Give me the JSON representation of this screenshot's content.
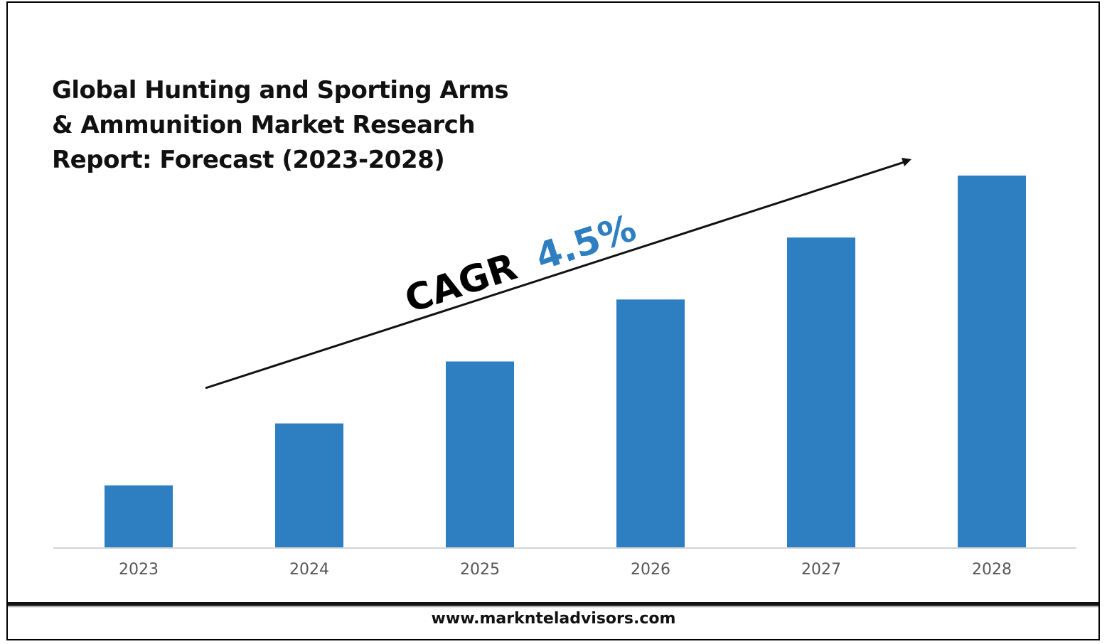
{
  "page": {
    "title": "Global Hunting and Sporting Arms\n& Ammunition Market Research\nReport: Forecast (2023-2028)",
    "footer_url": "www.marknteladvisors.com"
  },
  "annotation": {
    "cagr_label": "CAGR",
    "cagr_value": "4.5%",
    "label_color": "#000000",
    "value_color": "#2E7FC1"
  },
  "chart_data": {
    "type": "bar",
    "categories": [
      "2023",
      "2024",
      "2025",
      "2026",
      "2027",
      "2028"
    ],
    "values": [
      1,
      2,
      3,
      4,
      5,
      6
    ],
    "ylim": [
      0,
      6
    ],
    "bar_color": "#2E7FC1",
    "grid": false,
    "y_axis_shown": false
  }
}
